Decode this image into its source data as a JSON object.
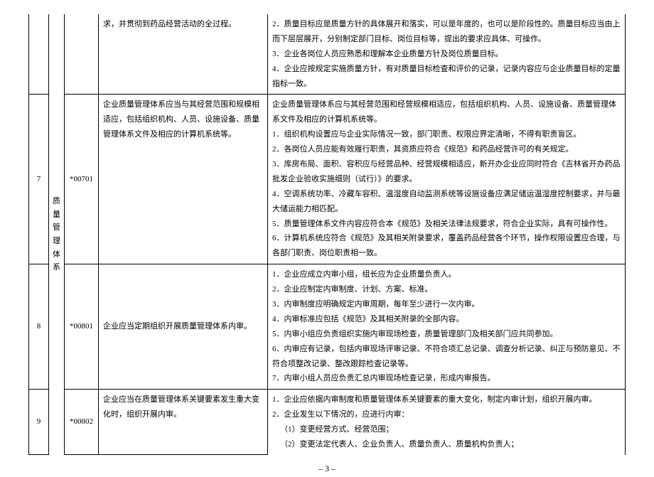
{
  "page_number": "– 3 –",
  "category_vertical": [
    "质",
    "量",
    "管",
    "理",
    "体",
    "系"
  ],
  "rows": [
    {
      "num": "",
      "code": "",
      "req": "求，并贯彻到药品经营活动的全过程。",
      "details": [
        "2．质量目标应是质量方针的具体展开和落实，可以是年度的，也可以是阶段性的。质量目标应当由上而下层层展开，分别制定部门目标、岗位目标等，提出的要求应具体、可操作。",
        "3．企业各岗位人员应熟悉和理解本企业质量方针及岗位质量目标。",
        "4．企业应按规定实施质量方针，有对质量目标检查和评价的记录，记录内容应与企业质量目标的定量指标一致。"
      ]
    },
    {
      "num": "7",
      "code": "*00701",
      "req": "企业质量管理体系应当与其经营范围和规模相适应，包括组织机构、人员、设施设备、质量管理体系文件及相应的计算机系统等。",
      "details": [
        "企业质量管理体系应与其经营范围和经营规模相适应，包括组织机构、人员、设施设备、质量管理体系文件及相应的计算机系统等。",
        "1．组织机构设置应与企业实际情况一致，部门职责、权限应界定清晰，不得有职责盲区。",
        "2．各岗位人员应能有效履行职责，其资质应符合《规范》和药品经营许可的有关规定。",
        "3．库房布局、面积、容积应与经营品种、经营规模相适应，新开办企业应同时符合《吉林省开办药品批发企业验收实施细则（试行）》的要求。",
        "4．空调系统功率、冷藏车容积、温湿度自动监测系统等设施设备应满足储运温湿度控制要求，并与最大储运能力相匹配。",
        "5．质量管理体系文件内容应符合本《规范》及相关法律法规要求，符合企业实际，具有可操作性。",
        "6．计算机系统应符合《规范》及其相关附录要求，覆盖药品经营各个环节，操作权限设置应合理，与各部门职责、岗位职责相一致。"
      ]
    },
    {
      "num": "8",
      "code": "*00801",
      "req": "企业应当定期组织开展质量管理体系内审。",
      "details": [
        "1．企业应成立内审小组，组长应为企业质量负责人。",
        "2．企业应制定内审制度、计划、方案、标准。",
        "3．内审制度应明确规定内审周期，每年至少进行一次内审。",
        "4．内审标准应包括《规范》及其相关附录的全部内容。",
        "5．内审小组应负责组织实施内审现场检查，质量管理部门及相关部门应共同参加。",
        "6．内审应有记录，包括内审现场评审记录、不符合项汇总记录、调查分析记录、纠正与预防意见、不符合项整改记录、整改跟踪检查记录等。",
        "7．内审小组人员应负责汇总内审现场检查记录，形成内审报告。"
      ]
    },
    {
      "num": "9",
      "code": "*00802",
      "req": "企业应当在质量管理体系关键要素发生重大变化时，组织开展内审。",
      "details": [
        "1．企业应依据内审制度和质量管理体系关键要素的重大变化，制定内审计划，组织开展内审。",
        "2．企业发生以下情况的，应进行内审：",
        "（1）变更经营方式、经营范围；",
        "（2）变更法定代表人、企业负责人、质量负责人、质量机构负责人；"
      ]
    }
  ]
}
